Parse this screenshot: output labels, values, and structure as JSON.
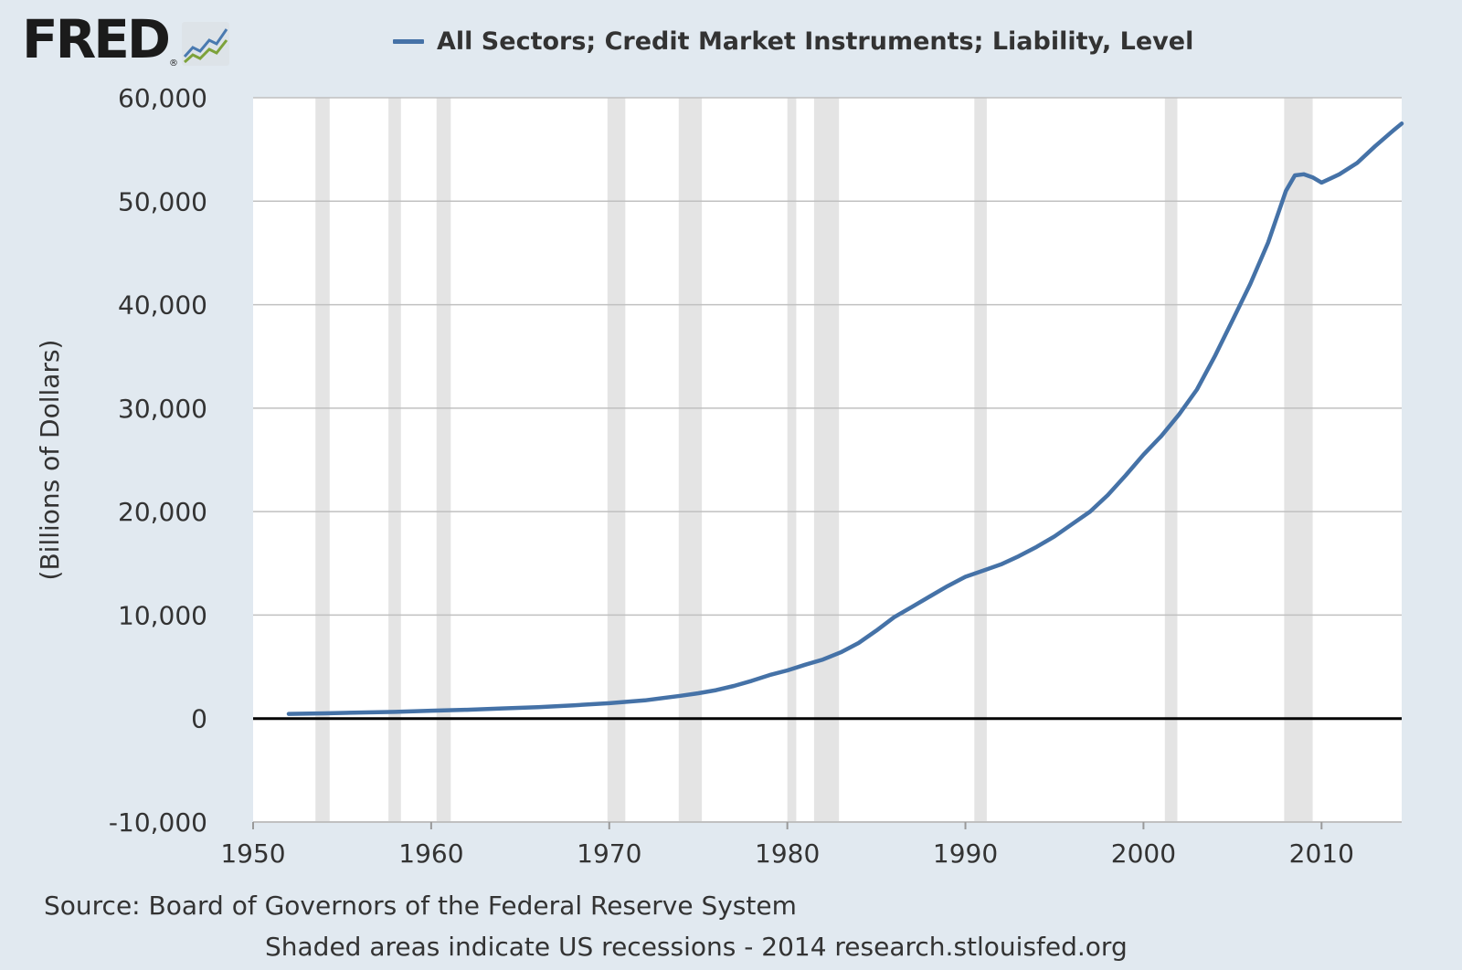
{
  "brand": {
    "logo_text": "FRED",
    "logo_mark": "®",
    "logo_icon": "line-chart-icon"
  },
  "colors": {
    "background": "#e1e9f0",
    "plot_background": "#ffffff",
    "series": "#4572a7",
    "recession": "#e4e4e4",
    "grid": "#c0c0c0",
    "zero_line": "#000000"
  },
  "footer": {
    "source": "Source: Board of Governors of the Federal Reserve System",
    "note": "Shaded areas indicate US recessions - 2014 research.stlouisfed.org"
  },
  "chart_data": {
    "type": "line",
    "title": "",
    "xlabel": "",
    "ylabel": "(Billions of Dollars)",
    "xlim": [
      1950,
      2014.5
    ],
    "ylim": [
      -10000,
      60000
    ],
    "x_ticks": [
      1950,
      1960,
      1970,
      1980,
      1990,
      2000,
      2010
    ],
    "x_tick_labels": [
      "1950",
      "1960",
      "1970",
      "1980",
      "1990",
      "2000",
      "2010"
    ],
    "y_ticks": [
      -10000,
      0,
      10000,
      20000,
      30000,
      40000,
      50000,
      60000
    ],
    "y_tick_labels": [
      "-10,000",
      "0",
      "10,000",
      "20,000",
      "30,000",
      "40,000",
      "50,000",
      "60,000"
    ],
    "grid": true,
    "legend_position": "top-center",
    "recessions": [
      [
        1953.5,
        1954.3
      ],
      [
        1957.6,
        1958.3
      ],
      [
        1960.3,
        1961.1
      ],
      [
        1969.9,
        1970.9
      ],
      [
        1973.9,
        1975.2
      ],
      [
        1980.0,
        1980.5
      ],
      [
        1981.5,
        1982.9
      ],
      [
        1990.5,
        1991.2
      ],
      [
        2001.2,
        2001.9
      ],
      [
        2007.9,
        2009.5
      ]
    ],
    "series": [
      {
        "name": "All Sectors; Credit Market Instruments; Liability, Level",
        "x": [
          1952,
          1954,
          1956,
          1958,
          1960,
          1962,
          1964,
          1966,
          1968,
          1970,
          1972,
          1974,
          1975,
          1976,
          1977,
          1978,
          1979,
          1980,
          1981,
          1982,
          1983,
          1984,
          1985,
          1986,
          1987,
          1988,
          1989,
          1990,
          1991,
          1992,
          1993,
          1994,
          1995,
          1996,
          1997,
          1998,
          1999,
          2000,
          2001,
          2002,
          2003,
          2004,
          2005,
          2006,
          2007,
          2008,
          2008.5,
          2009,
          2009.5,
          2010,
          2010.5,
          2011,
          2012,
          2013,
          2014,
          2014.5
        ],
        "values": [
          450,
          500,
          580,
          650,
          760,
          850,
          980,
          1100,
          1280,
          1480,
          1760,
          2200,
          2450,
          2750,
          3150,
          3650,
          4200,
          4650,
          5200,
          5700,
          6400,
          7300,
          8500,
          9800,
          10800,
          11800,
          12800,
          13700,
          14300,
          14900,
          15700,
          16600,
          17600,
          18800,
          20000,
          21600,
          23500,
          25500,
          27300,
          29400,
          31800,
          35000,
          38500,
          42000,
          46000,
          51000,
          52500,
          52600,
          52300,
          51800,
          52200,
          52600,
          53700,
          55300,
          56800,
          57500
        ]
      }
    ]
  }
}
